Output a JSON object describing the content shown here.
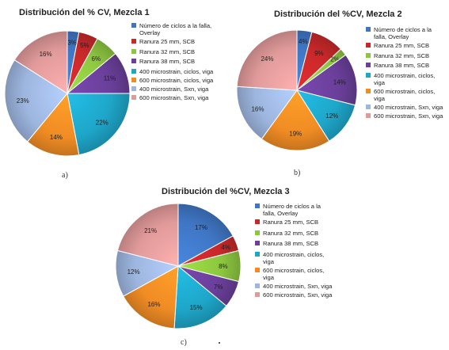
{
  "legend_labels": [
    "Número de ciclos a la falla, Overlay",
    "Ranura 25 mm, SCB",
    "Ranura 32 mm, SCB",
    "Ranura  38 mm, SCB",
    "400 microstrain, ciclos, viga",
    "600 microstrain, ciclos, viga",
    "400 microstrain, Sxn, viga",
    "600 microstrain, Sxn, viga"
  ],
  "colors": [
    "#3f76c4",
    "#c8282a",
    "#8cc63f",
    "#6a3f9a",
    "#1ea6c9",
    "#f08c24",
    "#9db6df",
    "#e19a9a"
  ],
  "panels": [
    {
      "title": "Distribución del % CV, Mezcla 1",
      "label": "a)"
    },
    {
      "title": "Distribución del %CV, Mezcla 2",
      "label": "b)"
    },
    {
      "title": "Distribución del %CV, Mezcla 3",
      "label": "c)"
    }
  ],
  "chart_data": [
    {
      "type": "pie",
      "title": "Distribución del % CV, Mezcla 1",
      "categories": [
        "Número de ciclos a la falla, Overlay",
        "Ranura 25 mm, SCB",
        "Ranura 32 mm, SCB",
        "Ranura  38 mm, SCB",
        "400 microstrain, ciclos, viga",
        "600 microstrain, ciclos, viga",
        "400 microstrain, Sxn, viga",
        "600 microstrain, Sxn, viga"
      ],
      "values": [
        3,
        5,
        6,
        11,
        22,
        14,
        23,
        16
      ],
      "labels": [
        "3%",
        "5%",
        "6%",
        "11%",
        "22%",
        "14%",
        "23%",
        "16%"
      ],
      "legend": "right"
    },
    {
      "type": "pie",
      "title": "Distribución del %CV, Mezcla 2",
      "categories": [
        "Número de ciclos a la falla, Overlay",
        "Ranura 25 mm, SCB",
        "Ranura 32 mm, SCB",
        "Ranura  38 mm, SCB",
        "400 microstrain, ciclos, viga",
        "600 microstrain, ciclos, viga",
        "400 microstrain, Sxn, viga",
        "600 microstrain, Sxn, viga"
      ],
      "values": [
        4,
        9,
        2,
        14,
        12,
        19,
        16,
        24
      ],
      "labels": [
        "4%",
        "9%",
        "2%",
        "14%",
        "12%",
        "19%",
        "16%",
        "24%"
      ],
      "legend": "right"
    },
    {
      "type": "pie",
      "title": "Distribución del %CV, Mezcla 3",
      "categories": [
        "Número de ciclos a la falla, Overlay",
        "Ranura 25 mm, SCB",
        "Ranura 32 mm, SCB",
        "Ranura  38 mm, SCB",
        "400 microstrain, ciclos, viga",
        "600 microstrain, ciclos, viga",
        "400 microstrain, Sxn, viga",
        "600 microstrain, Sxn, viga"
      ],
      "values": [
        17,
        4,
        8,
        7,
        15,
        16,
        12,
        21
      ],
      "labels": [
        "17%",
        "4%",
        "8%",
        "7%",
        "15%",
        "16%",
        "12%",
        "21%"
      ],
      "legend": "right"
    }
  ]
}
